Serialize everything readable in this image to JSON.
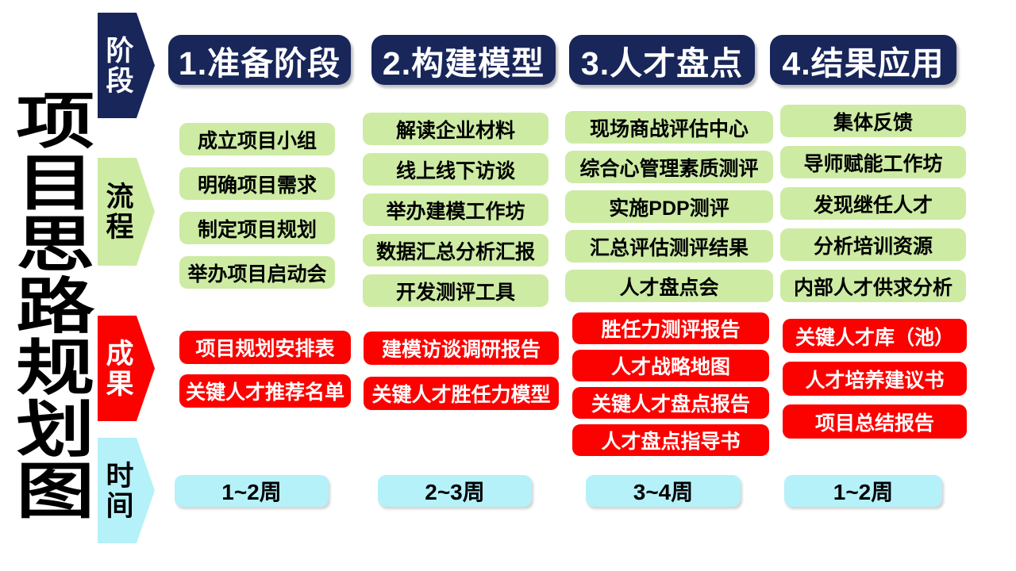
{
  "title": "项目思路规划图",
  "row_labels": {
    "stage": "阶段",
    "process": "流程",
    "results": "成果",
    "time": "时间"
  },
  "colors": {
    "navy": "#18265a",
    "green": "#cdeba3",
    "red": "#fb0200",
    "cyan": "#b5f1f9"
  },
  "columns": [
    {
      "header": "1.准备阶段",
      "process": [
        "成立项目小组",
        "明确项目需求",
        "制定项目规划",
        "举办项目启动会"
      ],
      "results": [
        "项目规划安排表",
        "关键人才推荐名单"
      ],
      "time": "1~2周"
    },
    {
      "header": "2.构建模型",
      "process": [
        "解读企业材料",
        "线上线下访谈",
        "举办建模工作坊",
        "数据汇总分析汇报",
        "开发测评工具"
      ],
      "results": [
        "建模访谈调研报告",
        "关键人才胜任力模型"
      ],
      "time": "2~3周"
    },
    {
      "header": "3.人才盘点",
      "process": [
        "现场商战评估中心",
        "综合心管理素质测评",
        "实施PDP测评",
        "汇总评估测评结果",
        "人才盘点会"
      ],
      "results": [
        "胜任力测评报告",
        "人才战略地图",
        "关键人才盘点报告",
        "人才盘点指导书"
      ],
      "time": "3~4周"
    },
    {
      "header": "4.结果应用",
      "process": [
        "集体反馈",
        "导师赋能工作坊",
        "发现继任人才",
        "分析培训资源",
        "内部人才供求分析"
      ],
      "results": [
        "关键人才库（池）",
        "人才培养建议书",
        "项目总结报告"
      ],
      "time": "1~2周"
    }
  ]
}
